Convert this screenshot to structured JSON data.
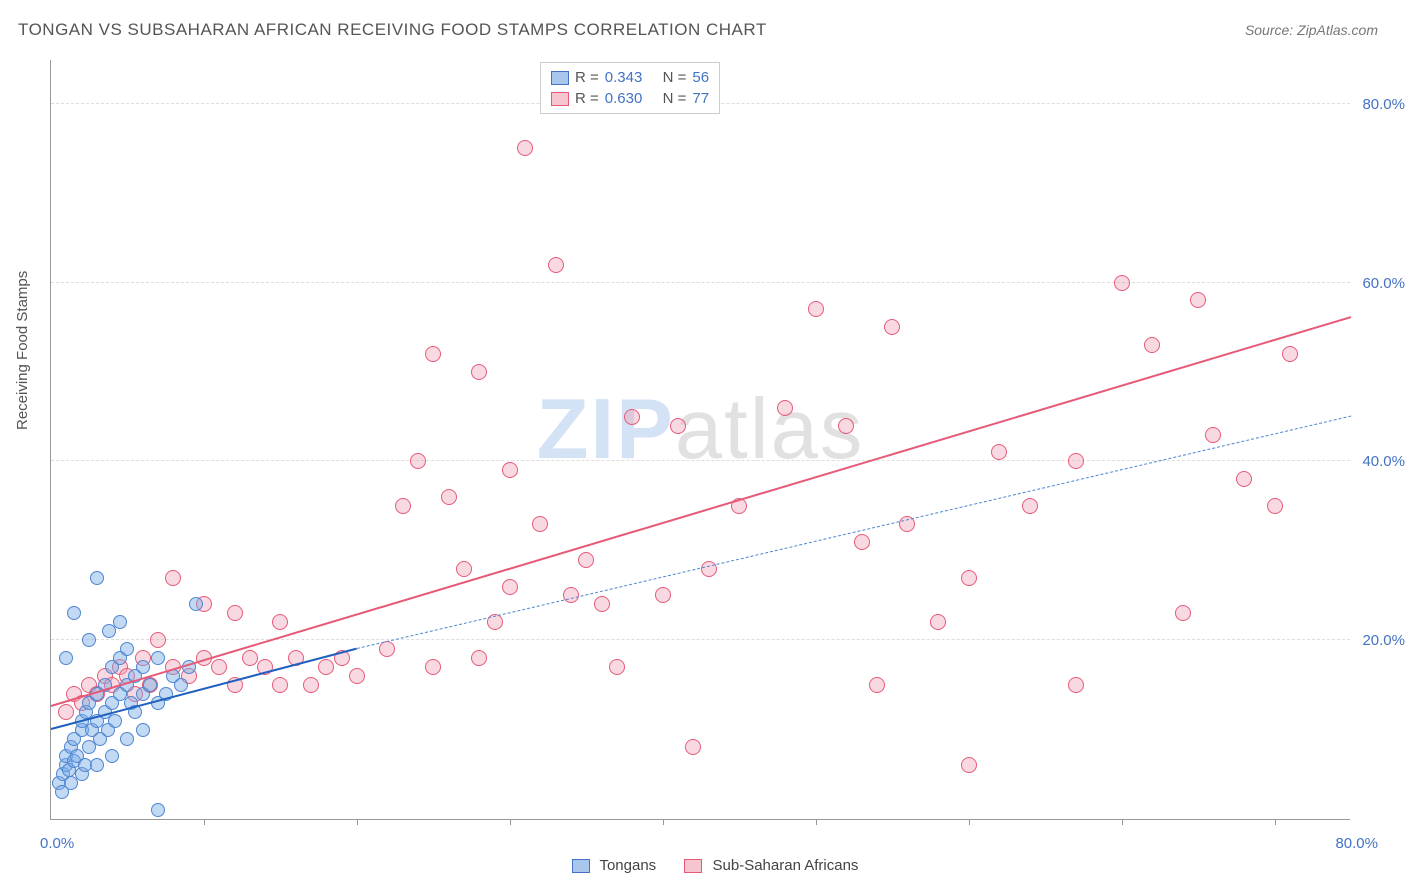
{
  "meta": {
    "title": "TONGAN VS SUBSAHARAN AFRICAN RECEIVING FOOD STAMPS CORRELATION CHART",
    "source_label": "Source: ZipAtlas.com",
    "watermark_zip": "ZIP",
    "watermark_atlas": "atlas"
  },
  "axes": {
    "y_label": "Receiving Food Stamps",
    "x_origin_label": "0.0%",
    "x_max_label": "80.0%",
    "xlim": [
      0,
      85
    ],
    "ylim": [
      0,
      85
    ],
    "y_ticks": [
      {
        "v": 20,
        "label": "20.0%"
      },
      {
        "v": 40,
        "label": "40.0%"
      },
      {
        "v": 60,
        "label": "60.0%"
      },
      {
        "v": 80,
        "label": "80.0%"
      }
    ],
    "x_ticks_minor": [
      10,
      20,
      30,
      40,
      50,
      60,
      70,
      80
    ],
    "grid_color": "#dddddd",
    "axis_color": "#999999",
    "tick_label_color": "#4472c4"
  },
  "legend_top": {
    "rows": [
      {
        "swatch_fill": "#a9c6ed",
        "swatch_border": "#4472c4",
        "r_label": "R = ",
        "r_value": "0.343",
        "n_label": "N = ",
        "n_value": "56"
      },
      {
        "swatch_fill": "#f7c5cf",
        "swatch_border": "#e65a78",
        "r_label": "R = ",
        "r_value": "0.630",
        "n_label": "N = ",
        "n_value": "77"
      }
    ]
  },
  "legend_bottom": {
    "items": [
      {
        "swatch_fill": "#a9c6ed",
        "swatch_border": "#4472c4",
        "label": "Tongans"
      },
      {
        "swatch_fill": "#f7c5cf",
        "swatch_border": "#e65a78",
        "label": "Sub-Saharan Africans"
      }
    ]
  },
  "series": {
    "tongans": {
      "color_fill": "rgba(120,170,230,0.45)",
      "color_border": "#4f86d1",
      "marker_radius": 7,
      "trend_solid": {
        "x1": 0,
        "y1": 10,
        "x2": 20,
        "y2": 19,
        "color": "#1f5fbf",
        "width": 2.5,
        "dash": false
      },
      "trend_dash": {
        "x1": 20,
        "y1": 19,
        "x2": 85,
        "y2": 45,
        "color": "#4f86d1",
        "width": 1.2,
        "dash": true
      },
      "points": [
        [
          0.5,
          4
        ],
        [
          0.8,
          5
        ],
        [
          1,
          6
        ],
        [
          1,
          7
        ],
        [
          1.2,
          5.5
        ],
        [
          1.3,
          8
        ],
        [
          1.5,
          6.5
        ],
        [
          1.5,
          9
        ],
        [
          1.7,
          7
        ],
        [
          2,
          5
        ],
        [
          2,
          10
        ],
        [
          2,
          11
        ],
        [
          2.2,
          6
        ],
        [
          2.3,
          12
        ],
        [
          2.5,
          8
        ],
        [
          2.5,
          13
        ],
        [
          2.7,
          10
        ],
        [
          3,
          6
        ],
        [
          3,
          11
        ],
        [
          3,
          14
        ],
        [
          3.2,
          9
        ],
        [
          3.5,
          12
        ],
        [
          3.5,
          15
        ],
        [
          3.7,
          10
        ],
        [
          4,
          7
        ],
        [
          4,
          13
        ],
        [
          4,
          17
        ],
        [
          4.2,
          11
        ],
        [
          4.5,
          14
        ],
        [
          4.5,
          18
        ],
        [
          5,
          9
        ],
        [
          5,
          15
        ],
        [
          5,
          19
        ],
        [
          5.2,
          13
        ],
        [
          5.5,
          16
        ],
        [
          5.5,
          12
        ],
        [
          6,
          10
        ],
        [
          6,
          14
        ],
        [
          6,
          17
        ],
        [
          6.5,
          15
        ],
        [
          7,
          13
        ],
        [
          7,
          18
        ],
        [
          7.5,
          14
        ],
        [
          8,
          16
        ],
        [
          8.5,
          15
        ],
        [
          9,
          17
        ],
        [
          9.5,
          24
        ],
        [
          3,
          27
        ],
        [
          1.5,
          23
        ],
        [
          2.5,
          20
        ],
        [
          3.8,
          21
        ],
        [
          4.5,
          22
        ],
        [
          1,
          18
        ],
        [
          1.3,
          4
        ],
        [
          0.7,
          3
        ],
        [
          7,
          1
        ]
      ]
    },
    "subsaharan": {
      "color_fill": "rgba(240,160,180,0.40)",
      "color_border": "#e65a78",
      "marker_radius": 8,
      "trend_solid": {
        "x1": 0,
        "y1": 12.5,
        "x2": 85,
        "y2": 56,
        "color": "#e65a78",
        "width": 2.2,
        "dash": false
      },
      "points": [
        [
          1,
          12
        ],
        [
          1.5,
          14
        ],
        [
          2,
          13
        ],
        [
          2.5,
          15
        ],
        [
          3,
          14
        ],
        [
          3.5,
          16
        ],
        [
          4,
          15
        ],
        [
          4.5,
          17
        ],
        [
          5,
          16
        ],
        [
          5.5,
          14
        ],
        [
          6,
          18
        ],
        [
          6.5,
          15
        ],
        [
          7,
          20
        ],
        [
          8,
          17
        ],
        [
          8,
          27
        ],
        [
          9,
          16
        ],
        [
          10,
          18
        ],
        [
          10,
          24
        ],
        [
          11,
          17
        ],
        [
          12,
          15
        ],
        [
          12,
          23
        ],
        [
          13,
          18
        ],
        [
          14,
          17
        ],
        [
          15,
          15
        ],
        [
          15,
          22
        ],
        [
          16,
          18
        ],
        [
          17,
          15
        ],
        [
          18,
          17
        ],
        [
          19,
          18
        ],
        [
          20,
          16
        ],
        [
          22,
          19
        ],
        [
          23,
          35
        ],
        [
          24,
          40
        ],
        [
          25,
          52
        ],
        [
          25,
          17
        ],
        [
          26,
          36
        ],
        [
          27,
          28
        ],
        [
          28,
          18
        ],
        [
          28,
          50
        ],
        [
          29,
          22
        ],
        [
          30,
          39
        ],
        [
          30,
          26
        ],
        [
          31,
          75
        ],
        [
          32,
          33
        ],
        [
          33,
          62
        ],
        [
          34,
          25
        ],
        [
          35,
          29
        ],
        [
          36,
          24
        ],
        [
          37,
          17
        ],
        [
          38,
          45
        ],
        [
          40,
          25
        ],
        [
          41,
          44
        ],
        [
          42,
          8
        ],
        [
          43,
          28
        ],
        [
          45,
          35
        ],
        [
          48,
          46
        ],
        [
          50,
          57
        ],
        [
          52,
          44
        ],
        [
          53,
          31
        ],
        [
          55,
          55
        ],
        [
          56,
          33
        ],
        [
          58,
          22
        ],
        [
          60,
          27
        ],
        [
          60,
          6
        ],
        [
          62,
          41
        ],
        [
          64,
          35
        ],
        [
          67,
          40
        ],
        [
          70,
          60
        ],
        [
          72,
          53
        ],
        [
          74,
          23
        ],
        [
          75,
          58
        ],
        [
          76,
          43
        ],
        [
          78,
          38
        ],
        [
          80,
          35
        ],
        [
          81,
          52
        ],
        [
          67,
          15
        ],
        [
          54,
          15
        ]
      ]
    }
  }
}
